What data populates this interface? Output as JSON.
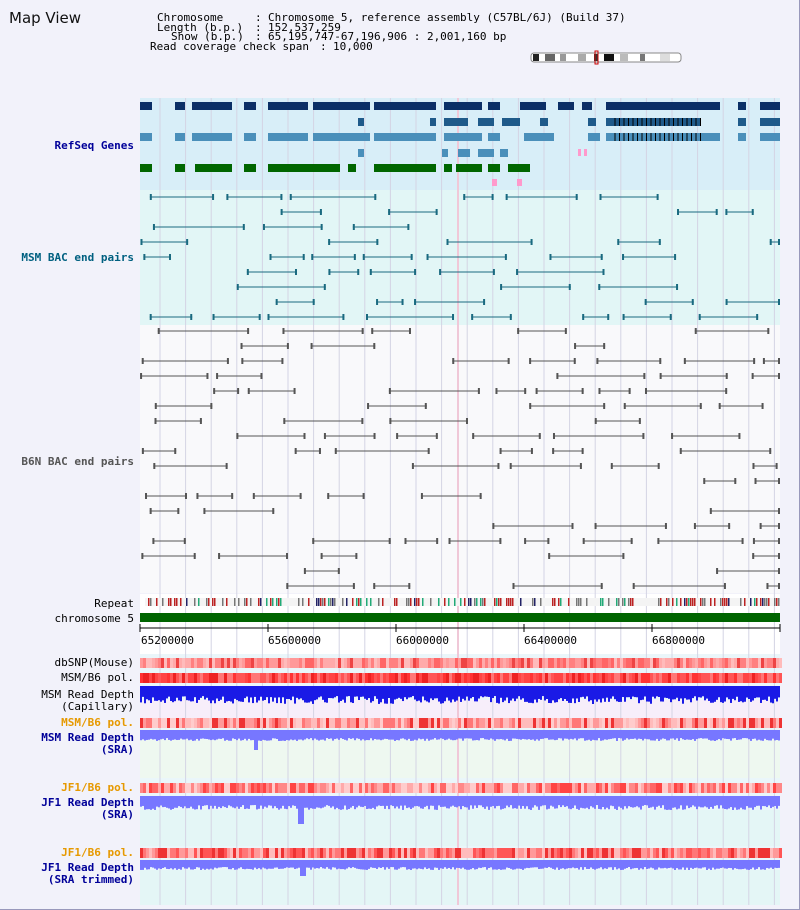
{
  "page": {
    "title": "Map View"
  },
  "header": {
    "chromosome_label": "Chromosome",
    "chromosome_value": "Chromosome 5, reference assembly (C57BL/6J) (Build 37)",
    "length_label": "Length (b.p.)",
    "length_value": "152,537,259",
    "show_label": "Show (b.p.)",
    "show_value": "65,195,747-67,196,906 : 2,001,160 bp",
    "span_label": "Read coverage check span",
    "span_value": "10,000"
  },
  "tracks": {
    "refseq": "RefSeq Genes",
    "msm_bac": "MSM BAC end pairs",
    "b6n_bac": "B6N BAC end pairs",
    "repeat": "Repeat",
    "chromosome": "chromosome 5",
    "dbsnp": "dbSNP(Mouse)",
    "msm_pol": "MSM/B6 pol.",
    "msm_depth_cap_1": "MSM Read Depth",
    "msm_depth_cap_2": "(Capillary)",
    "msm_pol_2": "MSM/B6 pol.",
    "msm_depth_sra_1": "MSM Read Depth",
    "msm_depth_sra_2": "(SRA)",
    "jf1_pol": "JF1/B6 pol.",
    "jf1_depth_1": "JF1 Read Depth",
    "jf1_depth_2": "(SRA)",
    "jf1_pol_2": "JF1/B6 pol.",
    "jf1_trim_1": "JF1 Read Depth",
    "jf1_trim_2": "(SRA trimmed)"
  },
  "axis": {
    "ticks": [
      "65200000",
      "65600000",
      "66000000",
      "66400000",
      "66800000"
    ]
  },
  "colors": {
    "refseq_dark": "#0b2f66",
    "refseq_mid": "#4a8fba",
    "refseq_green": "#006600",
    "msm_bac": "#1a6a80",
    "b6n_bac": "#555555",
    "chromosome": "#006400",
    "depth_blue": "#1a1ae6",
    "depth_light": "#7777ff",
    "label_blue": "#000099",
    "label_orange": "#e69900",
    "label_teal": "#006080"
  }
}
